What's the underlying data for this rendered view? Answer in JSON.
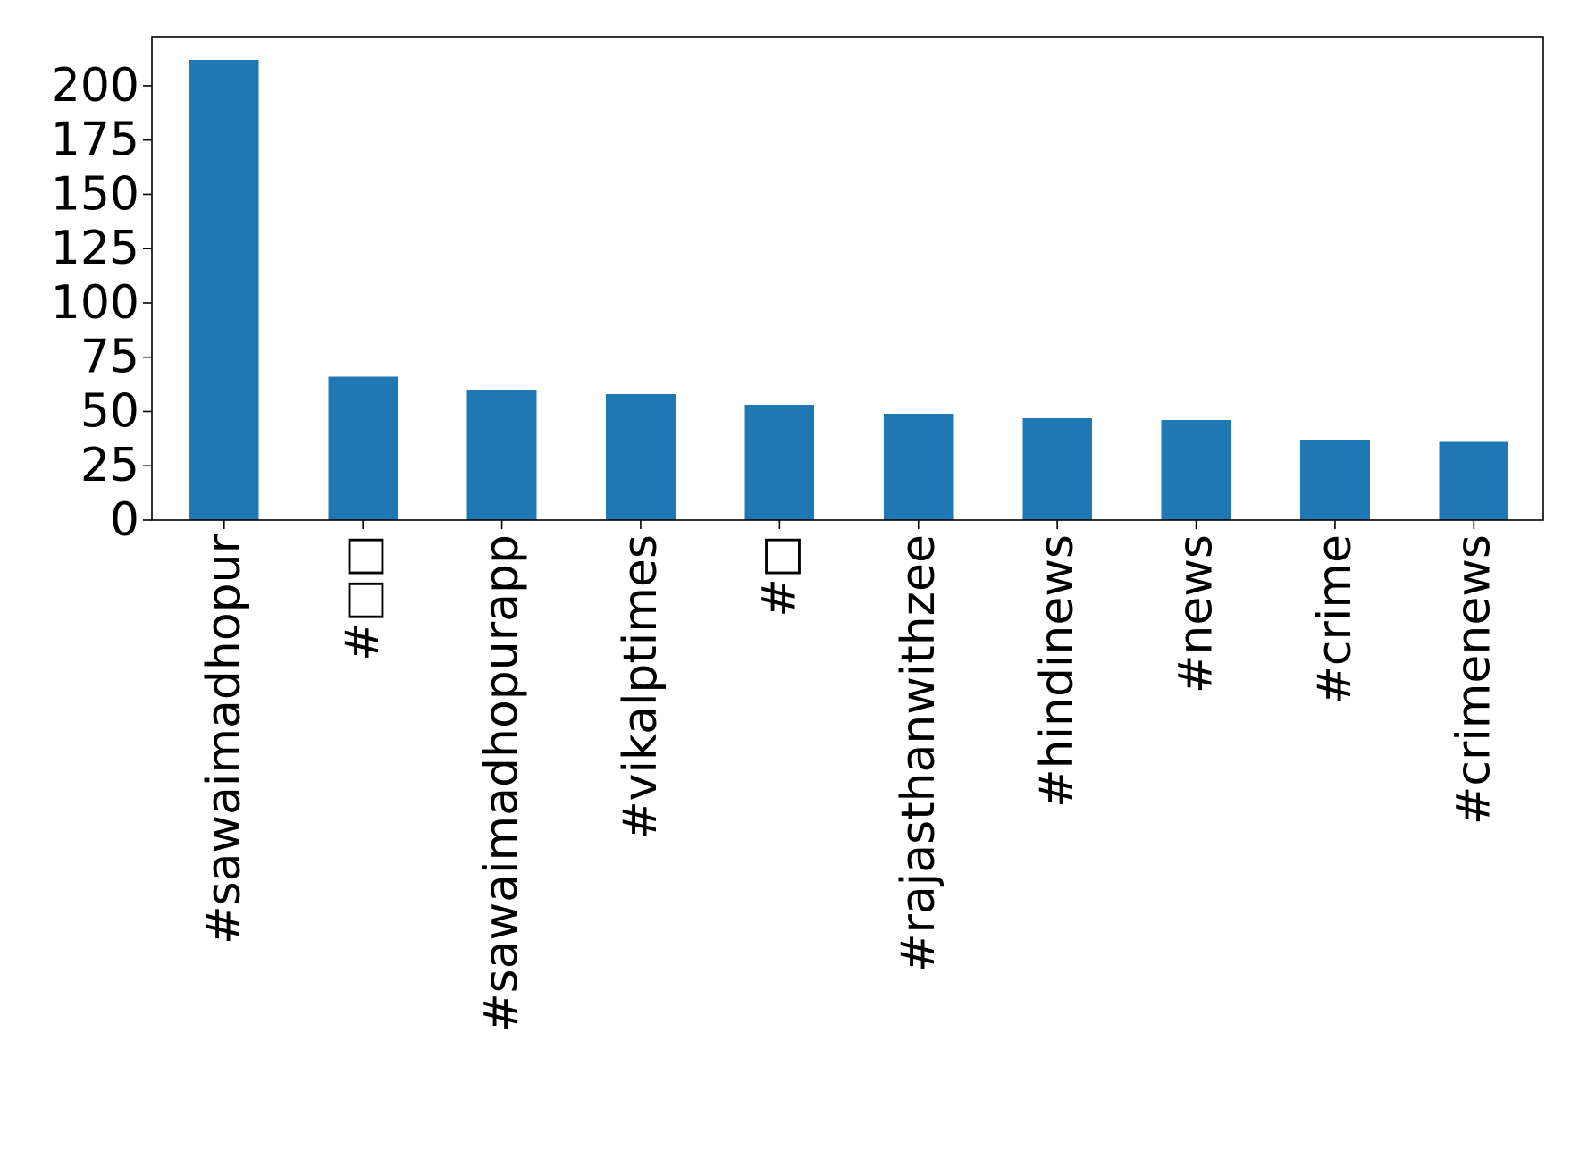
{
  "chart_data": {
    "type": "bar",
    "categories": [
      "#sawaimadhopur",
      "#□□",
      "#sawaimadhopurapp",
      "#vikalptimes",
      "#□",
      "#rajasthanwithzee",
      "#hindinews",
      "#news",
      "#crime",
      "#crimenews"
    ],
    "values": [
      212,
      66,
      60,
      58,
      53,
      49,
      47,
      46,
      37,
      36
    ],
    "y_ticks": [
      0,
      25,
      50,
      75,
      100,
      125,
      150,
      175,
      200
    ],
    "ylim": [
      0,
      222.6
    ],
    "title": "",
    "xlabel": "",
    "ylabel": "",
    "grid": false,
    "bar_color": "#1f77b4",
    "axis_color": "#000000",
    "background_color": "#ffffff"
  }
}
